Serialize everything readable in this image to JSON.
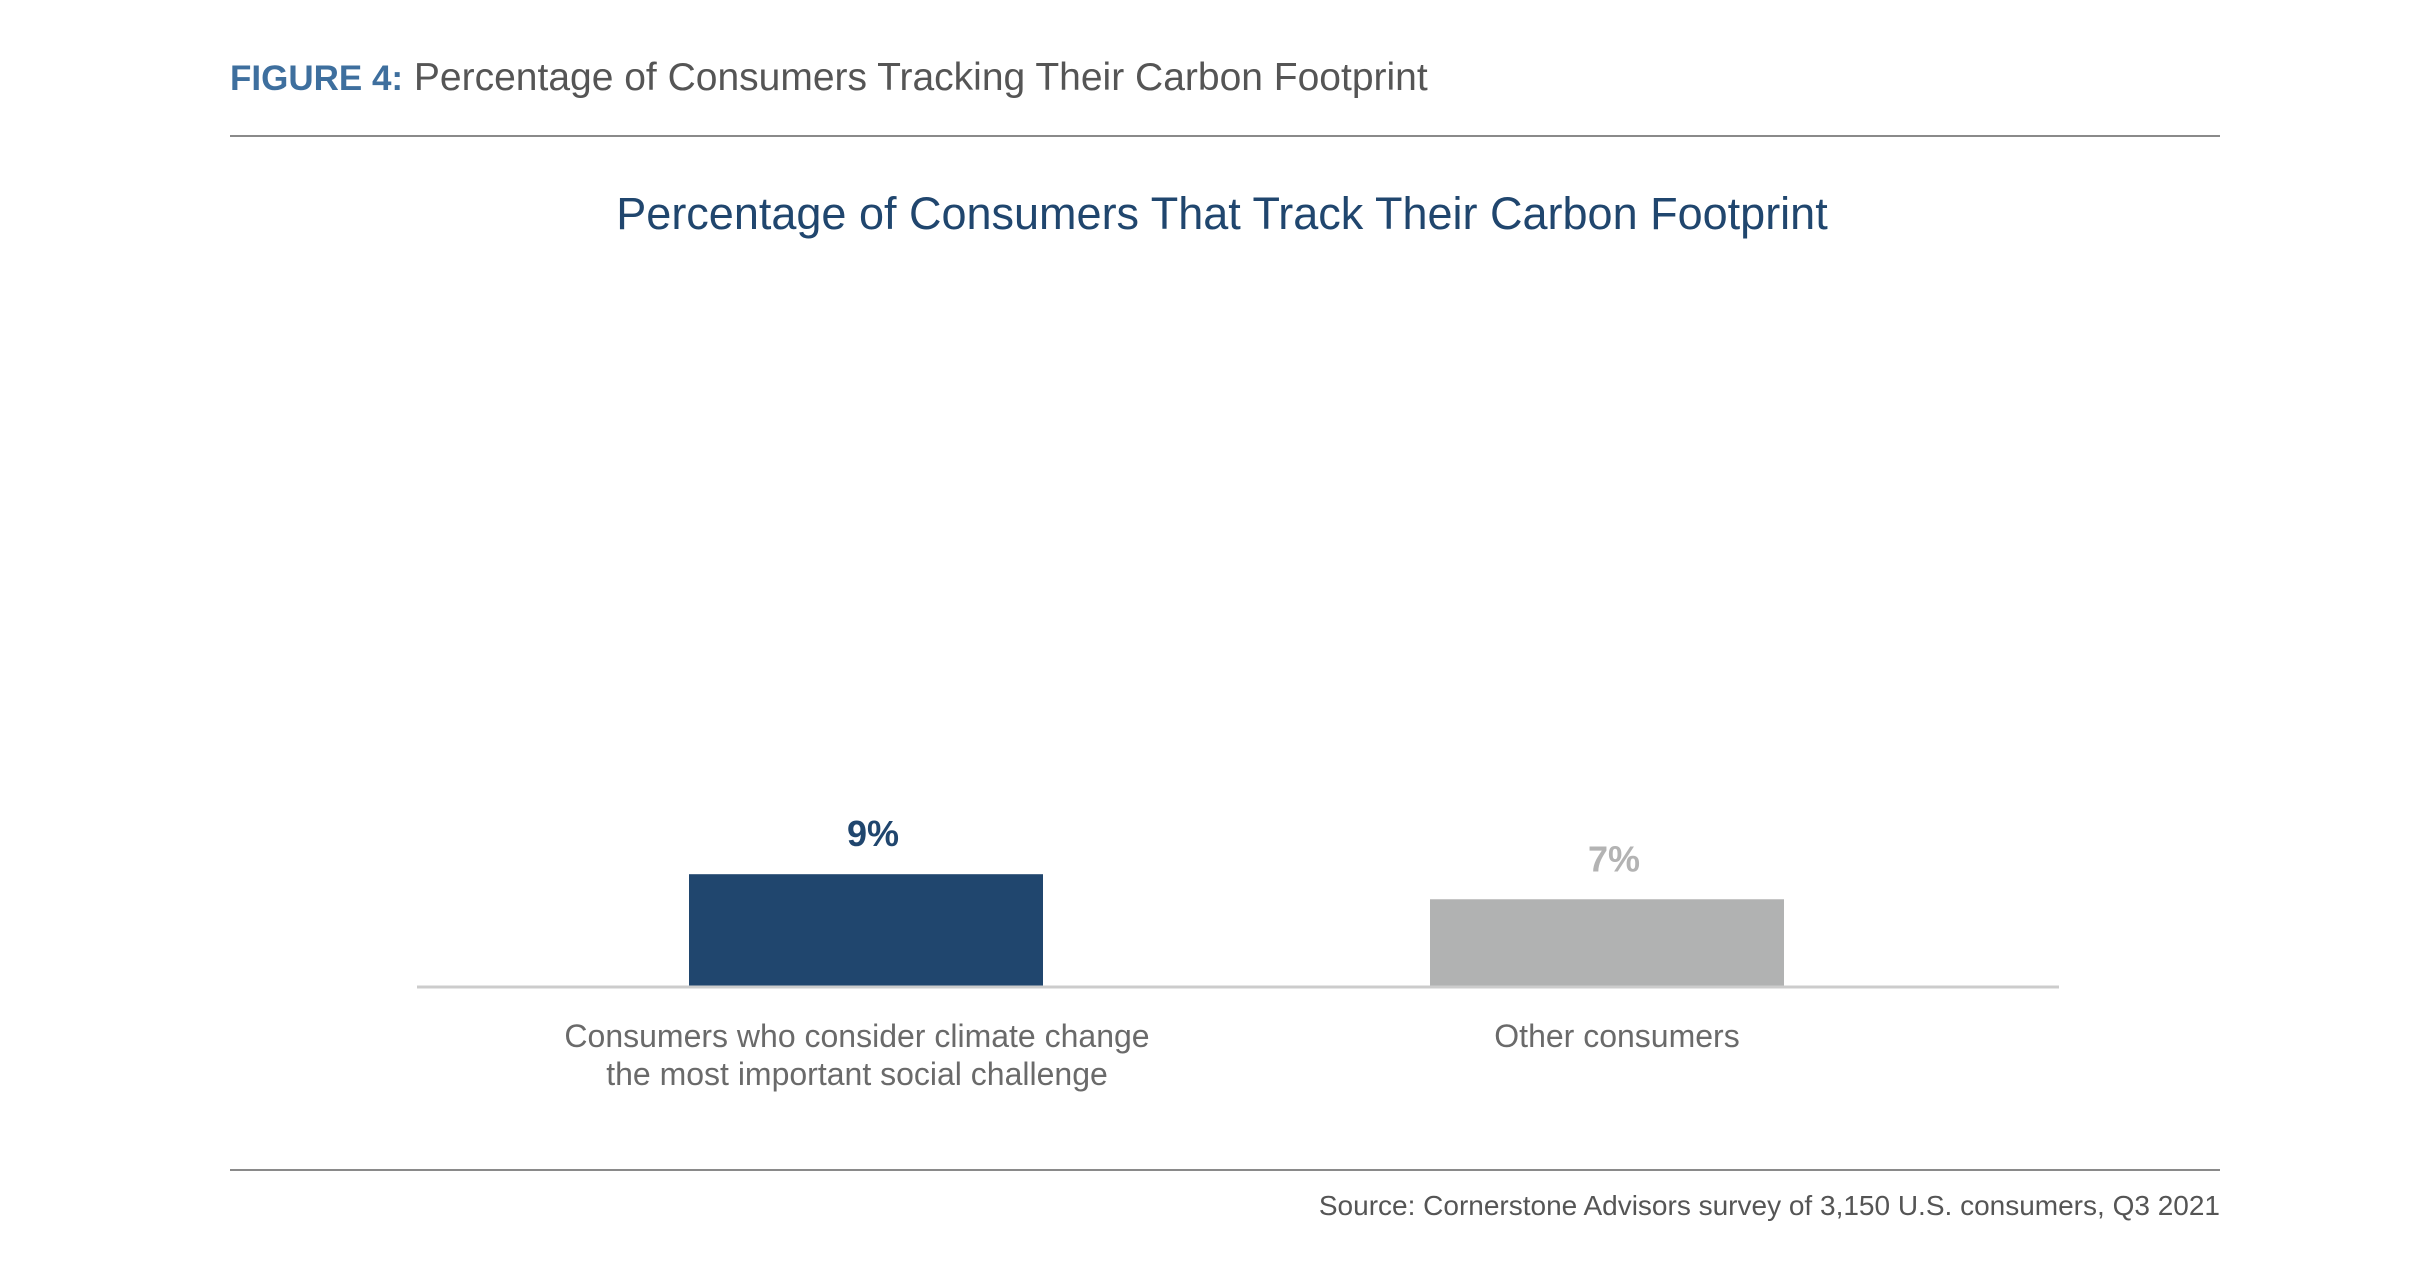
{
  "figure": {
    "label": "FIGURE 4:",
    "title": "Percentage of Consumers Tracking Their Carbon Footprint"
  },
  "source": "Source: Cornerstone Advisors survey of 3,150 U.S. consumers, Q3 2021",
  "colors": {
    "bar_primary": "#20466e",
    "bar_secondary": "#b1b2b2",
    "label_primary": "#20466e",
    "label_secondary": "#b3b3b3",
    "title": "#20466e",
    "axis": "#cccccc",
    "category_text": "#6a6a6a"
  },
  "chart_data": {
    "type": "bar",
    "title": "Percentage of Consumers That Track Their Carbon Footprint",
    "categories": [
      [
        "Consumers who consider climate change",
        "the most important social challenge"
      ],
      [
        "Other consumers"
      ]
    ],
    "values": [
      9,
      7
    ],
    "value_labels": [
      "9%",
      "7%"
    ],
    "unit": "%",
    "xlabel": "",
    "ylabel": "",
    "ylim": [
      0,
      60
    ],
    "grid": false,
    "legend": "none"
  }
}
